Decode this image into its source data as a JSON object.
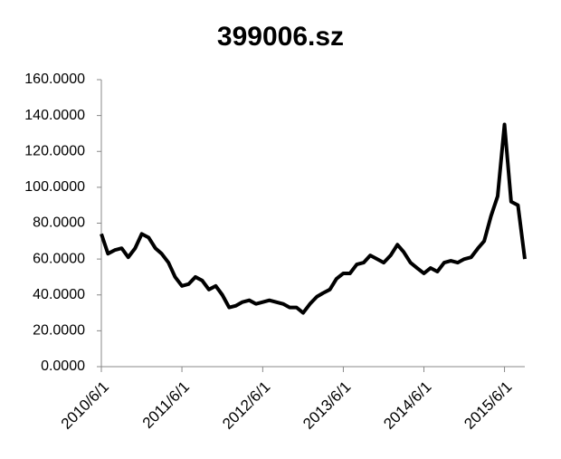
{
  "chart_data": {
    "type": "line",
    "title": "399006.sz",
    "x": [
      "2010/6/1",
      "2010/7/1",
      "2010/8/1",
      "2010/9/1",
      "2010/10/1",
      "2010/11/1",
      "2010/12/1",
      "2011/1/1",
      "2011/2/1",
      "2011/3/1",
      "2011/4/1",
      "2011/5/1",
      "2011/6/1",
      "2011/7/1",
      "2011/8/1",
      "2011/9/1",
      "2011/10/1",
      "2011/11/1",
      "2011/12/1",
      "2012/1/1",
      "2012/2/1",
      "2012/3/1",
      "2012/4/1",
      "2012/5/1",
      "2012/6/1",
      "2012/7/1",
      "2012/8/1",
      "2012/9/1",
      "2012/10/1",
      "2012/11/1",
      "2012/12/1",
      "2013/1/1",
      "2013/2/1",
      "2013/3/1",
      "2013/4/1",
      "2013/5/1",
      "2013/6/1",
      "2013/7/1",
      "2013/8/1",
      "2013/9/1",
      "2013/10/1",
      "2013/11/1",
      "2013/12/1",
      "2014/1/1",
      "2014/2/1",
      "2014/3/1",
      "2014/4/1",
      "2014/5/1",
      "2014/6/1",
      "2014/7/1",
      "2014/8/1",
      "2014/9/1",
      "2014/10/1",
      "2014/11/1",
      "2014/12/1",
      "2015/1/1",
      "2015/2/1",
      "2015/3/1",
      "2015/4/1",
      "2015/5/1",
      "2015/6/1",
      "2015/7/1",
      "2015/8/1",
      "2015/9/1"
    ],
    "series": [
      {
        "name": "399006.sz",
        "color": "#000000",
        "values": [
          74,
          63,
          65,
          66,
          61,
          66,
          74,
          72,
          66,
          63,
          58,
          50,
          45,
          46,
          50,
          48,
          43,
          45,
          40,
          33,
          34,
          36,
          37,
          35,
          36,
          37,
          36,
          35,
          33,
          33,
          30,
          35,
          39,
          41,
          43,
          49,
          52,
          52,
          57,
          58,
          62,
          60,
          58,
          62,
          68,
          64,
          58,
          55,
          52,
          55,
          53,
          58,
          59,
          58,
          60,
          61,
          66,
          70,
          84,
          95,
          135,
          92,
          90,
          60
        ]
      }
    ],
    "xlim": [
      "2010/6/1",
      "2015/9/1"
    ],
    "xticks": [
      "2010/6/1",
      "2011/6/1",
      "2012/6/1",
      "2013/6/1",
      "2014/6/1",
      "2015/6/1"
    ],
    "ylim": [
      0,
      160
    ],
    "yticks": [
      {
        "value": 0,
        "label": "0.0000"
      },
      {
        "value": 20,
        "label": "20.0000"
      },
      {
        "value": 40,
        "label": "40.0000"
      },
      {
        "value": 60,
        "label": "60.0000"
      },
      {
        "value": 80,
        "label": "80.0000"
      },
      {
        "value": 100,
        "label": "100.0000"
      },
      {
        "value": 120,
        "label": "120.0000"
      },
      {
        "value": 140,
        "label": "140.0000"
      },
      {
        "value": 160,
        "label": "160.0000"
      }
    ],
    "grid": false
  }
}
